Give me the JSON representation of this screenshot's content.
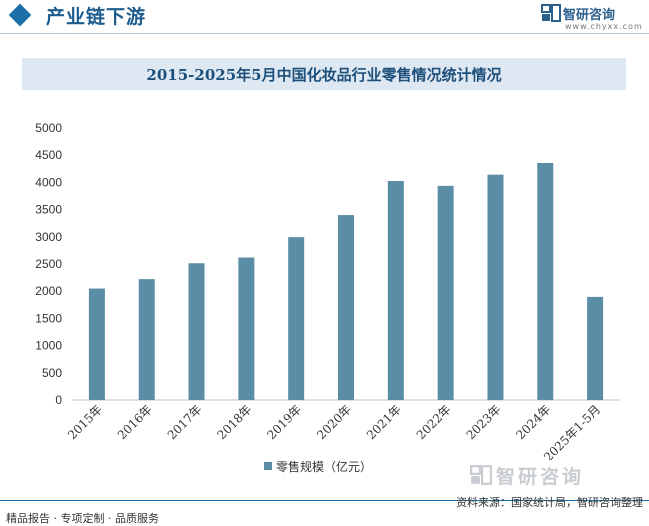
{
  "header": {
    "title": "产业链下游",
    "brand_name": "智研咨询",
    "brand_url": "www.chyxx.com"
  },
  "chart_data": {
    "type": "bar",
    "title": "2015-2025年5月中国化妆品行业零售情况统计情况",
    "categories": [
      "2015年",
      "2016年",
      "2017年",
      "2018年",
      "2019年",
      "2020年",
      "2021年",
      "2022年",
      "2023年",
      "2024年",
      "2025年1-5月"
    ],
    "series": [
      {
        "name": "零售规模（亿元）",
        "values": [
          2049,
          2222,
          2514,
          2619,
          2993,
          3400,
          4026,
          3936,
          4142,
          4357,
          1895
        ]
      }
    ],
    "ylim": [
      0,
      5000
    ],
    "yticks": [
      0,
      500,
      1000,
      1500,
      2000,
      2500,
      3000,
      3500,
      4000,
      4500,
      5000
    ],
    "grid": false,
    "legend": "bottom",
    "color": "#5b8ea6"
  },
  "watermark": {
    "text": "智研咨询"
  },
  "footer": {
    "left": "精品报告 · 专项定制 · 品质服务",
    "right": "资料来源：国家统计局，智研咨询整理"
  }
}
